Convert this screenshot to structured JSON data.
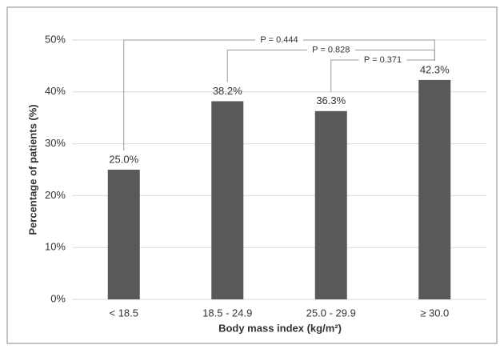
{
  "chart_data": {
    "type": "bar",
    "x_label": "Body mass index (kg/m²)",
    "y_label": "Percentage of patients (%)",
    "categories": [
      "< 18.5",
      "18.5 - 24.9",
      "25.0 - 29.9",
      "≥ 30.0"
    ],
    "values": [
      25.0,
      38.2,
      36.3,
      42.3
    ],
    "value_labels": [
      "25.0%",
      "38.2%",
      "36.3%",
      "42.3%"
    ],
    "color": "#595959",
    "ylim": [
      0,
      50
    ],
    "yticks": [
      {
        "value": 0,
        "label": "0%"
      },
      {
        "value": 10,
        "label": "10%"
      },
      {
        "value": 20,
        "label": "20%"
      },
      {
        "value": 30,
        "label": "30%"
      },
      {
        "value": 40,
        "label": "40%"
      },
      {
        "value": 50,
        "label": "50%"
      }
    ],
    "grid": true,
    "annotations": [
      {
        "text": "P = 0.444",
        "between": [
          0,
          3
        ]
      },
      {
        "text": "P = 0.828",
        "between": [
          1,
          3
        ]
      },
      {
        "text": "P = 0.371",
        "between": [
          2,
          3
        ]
      }
    ]
  }
}
